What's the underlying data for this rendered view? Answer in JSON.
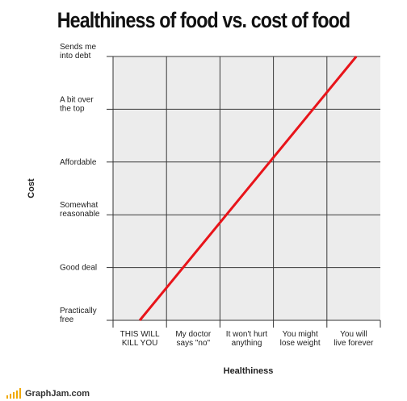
{
  "chart_data": {
    "type": "line",
    "title": "Healthiness of food vs. cost of food",
    "xlabel": "Healthiness",
    "ylabel": "Cost",
    "x_categories": [
      "THIS WILL\nKILL YOU",
      "My doctor\nsays \"no\"",
      "It won't hurt\nanything",
      "You might\nlose weight",
      "You will\nlive forever"
    ],
    "y_categories": [
      "Practically\nfree",
      "Good deal",
      "Somewhat\nreasonable",
      "Affordable",
      "A bit over\nthe top",
      "Sends me\ninto debt"
    ],
    "xlim": [
      0,
      5
    ],
    "ylim": [
      0,
      5
    ],
    "grid": true,
    "series": [
      {
        "color": "#e8141a",
        "x": [
          0.5,
          4.55
        ],
        "y": [
          0,
          5
        ]
      }
    ]
  },
  "footer": {
    "logo_text": "GraphJam.com"
  },
  "colors": {
    "plot_bg": "#ececec",
    "grid": "#3a3a3a",
    "line": "#e8141a",
    "logo": "#f0a800"
  }
}
